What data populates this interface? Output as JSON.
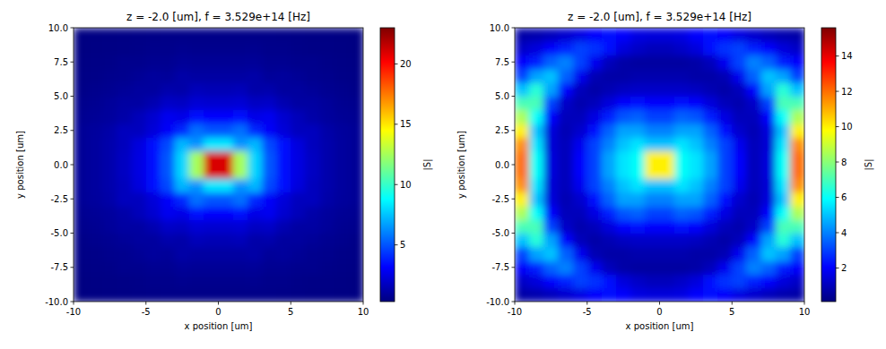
{
  "chart_data": [
    {
      "type": "heatmap",
      "title": "z = -2.0 [um], f = 3.529e+14 [Hz]",
      "x_label": "x position [um]",
      "y_label": "y position [um]",
      "color": "jet",
      "xlim": [
        -10,
        10
      ],
      "ylim": [
        -10,
        10
      ],
      "xticks": [
        -10,
        -5,
        0,
        5,
        10
      ],
      "yticks": [
        {
          "value": -10,
          "label": "-10.0"
        },
        {
          "value": -7.5,
          "label": "-7.5"
        },
        {
          "value": -5,
          "label": "-5.0"
        },
        {
          "value": -2.5,
          "label": "-2.5"
        },
        {
          "value": 0,
          "label": "0.0"
        },
        {
          "value": 2.5,
          "label": "2.5"
        },
        {
          "value": 5,
          "label": "5.0"
        },
        {
          "value": 7.5,
          "label": "7.5"
        },
        {
          "value": 10,
          "label": "10.0"
        }
      ],
      "x": [
        -9.5,
        -8.5,
        -7.5,
        -6.5,
        -5.5,
        -4.5,
        -3.5,
        -2.5,
        -1.5,
        -0.5,
        0.5,
        1.5,
        2.5,
        3.5,
        4.5,
        5.5,
        6.5,
        7.5,
        8.5,
        9.5
      ],
      "y": [
        -9.5,
        -8.5,
        -7.5,
        -6.5,
        -5.5,
        -4.5,
        -3.5,
        -2.5,
        -1.5,
        -0.5,
        0.5,
        1.5,
        2.5,
        3.5,
        4.5,
        5.5,
        6.5,
        7.5,
        8.5,
        9.5
      ],
      "cells": [
        [
          0.35,
          0.38,
          0.4,
          0.42,
          0.44,
          0.46,
          0.48,
          0.5,
          0.5,
          0.5,
          0.5,
          0.5,
          0.5,
          0.48,
          0.46,
          0.44,
          0.42,
          0.4,
          0.38,
          0.35
        ],
        [
          0.35,
          0.4,
          0.42,
          0.45,
          0.5,
          0.55,
          0.55,
          0.65,
          0.6,
          0.6,
          0.6,
          0.6,
          0.65,
          0.55,
          0.55,
          0.5,
          0.45,
          0.42,
          0.4,
          0.35
        ],
        [
          0.4,
          0.45,
          0.5,
          0.6,
          0.6,
          0.7,
          0.7,
          0.85,
          0.8,
          0.8,
          0.8,
          0.8,
          0.85,
          0.7,
          0.7,
          0.6,
          0.6,
          0.5,
          0.45,
          0.4
        ],
        [
          0.45,
          0.5,
          0.6,
          0.65,
          0.8,
          0.95,
          0.9,
          1.2,
          1.1,
          1.1,
          1.1,
          1.1,
          1.2,
          0.9,
          0.95,
          0.8,
          0.65,
          0.6,
          0.5,
          0.45
        ],
        [
          0.5,
          0.6,
          0.7,
          0.85,
          1.0,
          1.0,
          1.3,
          1.2,
          1.6,
          1.5,
          1.5,
          1.6,
          1.2,
          1.3,
          1.0,
          1.0,
          0.85,
          0.7,
          0.6,
          0.5
        ],
        [
          0.6,
          0.7,
          0.9,
          1.1,
          1.1,
          1.4,
          1.9,
          1.8,
          2.2,
          2.1,
          2.1,
          2.2,
          1.8,
          1.9,
          1.4,
          1.1,
          1.1,
          0.9,
          0.7,
          0.6
        ],
        [
          0.7,
          0.8,
          0.95,
          1.2,
          1.6,
          2.1,
          2.8,
          2.6,
          3.3,
          3.1,
          3.1,
          3.3,
          2.6,
          2.8,
          2.1,
          1.6,
          1.2,
          0.95,
          0.8,
          0.7
        ],
        [
          0.8,
          0.95,
          1.2,
          1.7,
          1.7,
          2.3,
          3.0,
          4.0,
          5.6,
          5.0,
          5.0,
          5.6,
          4.0,
          3.0,
          2.3,
          1.7,
          1.7,
          1.2,
          0.95,
          0.8
        ],
        [
          0.8,
          1.0,
          1.3,
          1.7,
          2.4,
          3.4,
          4.7,
          7.2,
          6.4,
          8.3,
          8.3,
          6.4,
          7.2,
          4.7,
          3.4,
          2.4,
          1.7,
          1.3,
          1.0,
          0.8
        ],
        [
          0.8,
          1.0,
          1.3,
          1.8,
          2.5,
          3.5,
          5,
          7.9,
          12.5,
          21,
          21,
          12.5,
          7.9,
          5,
          3.5,
          2.5,
          1.8,
          1.3,
          1.0,
          0.8
        ],
        [
          0.8,
          1.0,
          1.3,
          1.8,
          2.5,
          3.5,
          5,
          7.9,
          12.5,
          21,
          21,
          12.5,
          7.9,
          5,
          3.5,
          2.5,
          1.8,
          1.3,
          1.0,
          0.8
        ],
        [
          0.8,
          1.0,
          1.3,
          1.7,
          2.4,
          3.4,
          4.7,
          7.2,
          6.4,
          8.3,
          8.3,
          6.4,
          7.2,
          4.7,
          3.4,
          2.4,
          1.7,
          1.3,
          1.0,
          0.8
        ],
        [
          0.8,
          0.95,
          1.2,
          1.7,
          1.7,
          2.3,
          3.0,
          4.0,
          5.6,
          5.0,
          5.0,
          5.6,
          4.0,
          3.0,
          2.3,
          1.7,
          1.7,
          1.2,
          0.95,
          0.8
        ],
        [
          0.7,
          0.8,
          0.95,
          1.2,
          1.6,
          2.1,
          2.8,
          2.6,
          3.3,
          3.1,
          3.1,
          3.3,
          2.6,
          2.8,
          2.1,
          1.6,
          1.2,
          0.95,
          0.8,
          0.7
        ],
        [
          0.6,
          0.7,
          0.9,
          1.1,
          1.1,
          1.4,
          1.9,
          1.8,
          2.2,
          2.1,
          2.1,
          2.2,
          1.8,
          1.9,
          1.4,
          1.1,
          1.1,
          0.9,
          0.7,
          0.6
        ],
        [
          0.5,
          0.6,
          0.7,
          0.85,
          1.0,
          1.0,
          1.3,
          1.2,
          1.6,
          1.5,
          1.5,
          1.6,
          1.2,
          1.3,
          1.0,
          1.0,
          0.85,
          0.7,
          0.6,
          0.5
        ],
        [
          0.45,
          0.5,
          0.6,
          0.65,
          0.8,
          0.95,
          0.9,
          1.2,
          1.1,
          1.1,
          1.1,
          1.1,
          1.2,
          0.9,
          0.95,
          0.8,
          0.65,
          0.6,
          0.5,
          0.45
        ],
        [
          0.4,
          0.45,
          0.5,
          0.6,
          0.6,
          0.7,
          0.7,
          0.85,
          0.8,
          0.8,
          0.8,
          0.8,
          0.85,
          0.7,
          0.7,
          0.6,
          0.6,
          0.5,
          0.45,
          0.4
        ],
        [
          0.35,
          0.4,
          0.42,
          0.45,
          0.5,
          0.55,
          0.55,
          0.65,
          0.6,
          0.6,
          0.6,
          0.6,
          0.65,
          0.55,
          0.55,
          0.5,
          0.45,
          0.42,
          0.4,
          0.35
        ],
        [
          0.35,
          0.38,
          0.4,
          0.42,
          0.44,
          0.46,
          0.48,
          0.5,
          0.5,
          0.5,
          0.5,
          0.5,
          0.5,
          0.48,
          0.46,
          0.44,
          0.42,
          0.4,
          0.38,
          0.35
        ]
      ],
      "colorbar": {
        "label": "|S|",
        "range": [
          0.3,
          23
        ],
        "ticks": [
          5,
          10,
          15,
          20
        ]
      }
    },
    {
      "type": "heatmap",
      "title": "z = -2.0 [um], f = 3.529e+14 [Hz]",
      "x_label": "x position [um]",
      "y_label": "y position [um]",
      "color": "jet",
      "xlim": [
        -10,
        10
      ],
      "ylim": [
        -10,
        10
      ],
      "xticks": [
        -10,
        -5,
        0,
        5,
        10
      ],
      "yticks": [
        {
          "value": -10,
          "label": "-10.0"
        },
        {
          "value": -7.5,
          "label": "-7.5"
        },
        {
          "value": -5,
          "label": "-5.0"
        },
        {
          "value": -2.5,
          "label": "-2.5"
        },
        {
          "value": 0,
          "label": "0.0"
        },
        {
          "value": 2.5,
          "label": "2.5"
        },
        {
          "value": 5,
          "label": "5.0"
        },
        {
          "value": 7.5,
          "label": "7.5"
        },
        {
          "value": 10,
          "label": "10.0"
        }
      ],
      "x": [
        -9.5,
        -8.5,
        -7.5,
        -6.5,
        -5.5,
        -4.5,
        -3.5,
        -2.5,
        -1.5,
        -0.5,
        0.5,
        1.5,
        2.5,
        3.5,
        4.5,
        5.5,
        6.5,
        7.5,
        8.5,
        9.5
      ],
      "y": [
        -9.5,
        -8.5,
        -7.5,
        -6.5,
        -5.5,
        -4.5,
        -3.5,
        -2.5,
        -1.5,
        -0.5,
        0.5,
        1.5,
        2.5,
        3.5,
        4.5,
        5.5,
        6.5,
        7.5,
        8.5,
        9.5
      ],
      "cells": [
        [
          0.7,
          0.8,
          1,
          1.3,
          1.6,
          2,
          2.2,
          2,
          1.6,
          1.5,
          1.5,
          1.6,
          2,
          2.2,
          2,
          1.6,
          1.3,
          1,
          0.8,
          0.7
        ],
        [
          1.2,
          1.5,
          2,
          2.5,
          3,
          2.8,
          2.2,
          1.5,
          1.2,
          1,
          1,
          1.2,
          1.5,
          2.2,
          2.8,
          3,
          2.5,
          2,
          1.5,
          1.2
        ],
        [
          2,
          2.5,
          3.5,
          4,
          3,
          1.8,
          1,
          0.7,
          0.6,
          0.6,
          0.6,
          0.6,
          0.7,
          1,
          1.8,
          3,
          4,
          3.5,
          2.5,
          2
        ],
        [
          3,
          4.5,
          5,
          3.5,
          1.8,
          0.9,
          0.7,
          0.7,
          0.8,
          0.8,
          0.8,
          0.8,
          0.7,
          0.7,
          0.9,
          1.8,
          3.5,
          5,
          4.5,
          3
        ],
        [
          5,
          6.5,
          4.5,
          2,
          1,
          0.7,
          0.9,
          1.1,
          1.2,
          1.2,
          1.2,
          1.2,
          1.1,
          0.9,
          0.7,
          1,
          2,
          4.5,
          6.5,
          5
        ],
        [
          7,
          7,
          3,
          1.2,
          0.8,
          1,
          1.5,
          2,
          2.2,
          2,
          2,
          2.2,
          2,
          1.5,
          1,
          0.8,
          1.2,
          3,
          7,
          7
        ],
        [
          8.5,
          6,
          2,
          1,
          1,
          1.6,
          2.5,
          3.3,
          3.5,
          3,
          3,
          3.5,
          3.3,
          2.5,
          1.6,
          1,
          1,
          2,
          6,
          8.5
        ],
        [
          10,
          5,
          1.5,
          0.9,
          1.3,
          2.2,
          3.5,
          4.5,
          4.5,
          4,
          4,
          4.5,
          4.5,
          3.5,
          2.2,
          1.3,
          0.9,
          1.5,
          5,
          10
        ],
        [
          11.5,
          5.5,
          1.4,
          1,
          1.8,
          3,
          4,
          5,
          5.5,
          5,
          5,
          5.5,
          5,
          4,
          3,
          1.8,
          1,
          1.4,
          5.5,
          11.5
        ],
        [
          12,
          6,
          1.5,
          1,
          2,
          3,
          4.5,
          5.5,
          6,
          10,
          10,
          6,
          5.5,
          4.5,
          3,
          2,
          1,
          1.5,
          6,
          12
        ],
        [
          12,
          6,
          1.5,
          1,
          2,
          3,
          4.5,
          5.5,
          6,
          10,
          10,
          6,
          5.5,
          4.5,
          3,
          2,
          1,
          1.5,
          6,
          12
        ],
        [
          11.5,
          5.5,
          1.4,
          1,
          1.8,
          3,
          4,
          5,
          5.5,
          5,
          5,
          5.5,
          5,
          4,
          3,
          1.8,
          1,
          1.4,
          5.5,
          11.5
        ],
        [
          10,
          5,
          1.5,
          0.9,
          1.3,
          2.2,
          3.5,
          4.5,
          4.5,
          4,
          4,
          4.5,
          4.5,
          3.5,
          2.2,
          1.3,
          0.9,
          1.5,
          5,
          10
        ],
        [
          8.5,
          6,
          2,
          1,
          1,
          1.6,
          2.5,
          3.3,
          3.5,
          3,
          3,
          3.5,
          3.3,
          2.5,
          1.6,
          1,
          1,
          2,
          6,
          8.5
        ],
        [
          7,
          7,
          3,
          1.2,
          0.8,
          1,
          1.5,
          2,
          2.2,
          2,
          2,
          2.2,
          2,
          1.5,
          1,
          0.8,
          1.2,
          3,
          7,
          7
        ],
        [
          5,
          6.5,
          4.5,
          2,
          1,
          0.7,
          0.9,
          1.1,
          1.2,
          1.2,
          1.2,
          1.2,
          1.1,
          0.9,
          0.7,
          1,
          2,
          4.5,
          6.5,
          5
        ],
        [
          3,
          4.5,
          5,
          3.5,
          1.8,
          0.9,
          0.7,
          0.7,
          0.8,
          0.8,
          0.8,
          0.8,
          0.7,
          0.7,
          0.9,
          1.8,
          3.5,
          5,
          4.5,
          3
        ],
        [
          2,
          2.5,
          3.5,
          4,
          3,
          1.8,
          1,
          0.7,
          0.6,
          0.6,
          0.6,
          0.6,
          0.7,
          1,
          1.8,
          3,
          4,
          3.5,
          2.5,
          2
        ],
        [
          1.2,
          1.5,
          2,
          2.5,
          3,
          2.8,
          2.2,
          1.5,
          1.2,
          1,
          1,
          1.2,
          1.5,
          2.2,
          2.8,
          3,
          2.5,
          2,
          1.5,
          1.2
        ],
        [
          0.7,
          0.8,
          1,
          1.3,
          1.6,
          2,
          2.2,
          2,
          1.6,
          1.5,
          1.5,
          1.6,
          2,
          2.2,
          2,
          1.6,
          1.3,
          1,
          0.8,
          0.7
        ]
      ],
      "colorbar": {
        "label": "|S|",
        "range": [
          0.1,
          15.6
        ],
        "ticks": [
          2,
          4,
          6,
          8,
          10,
          12,
          14
        ]
      }
    }
  ]
}
